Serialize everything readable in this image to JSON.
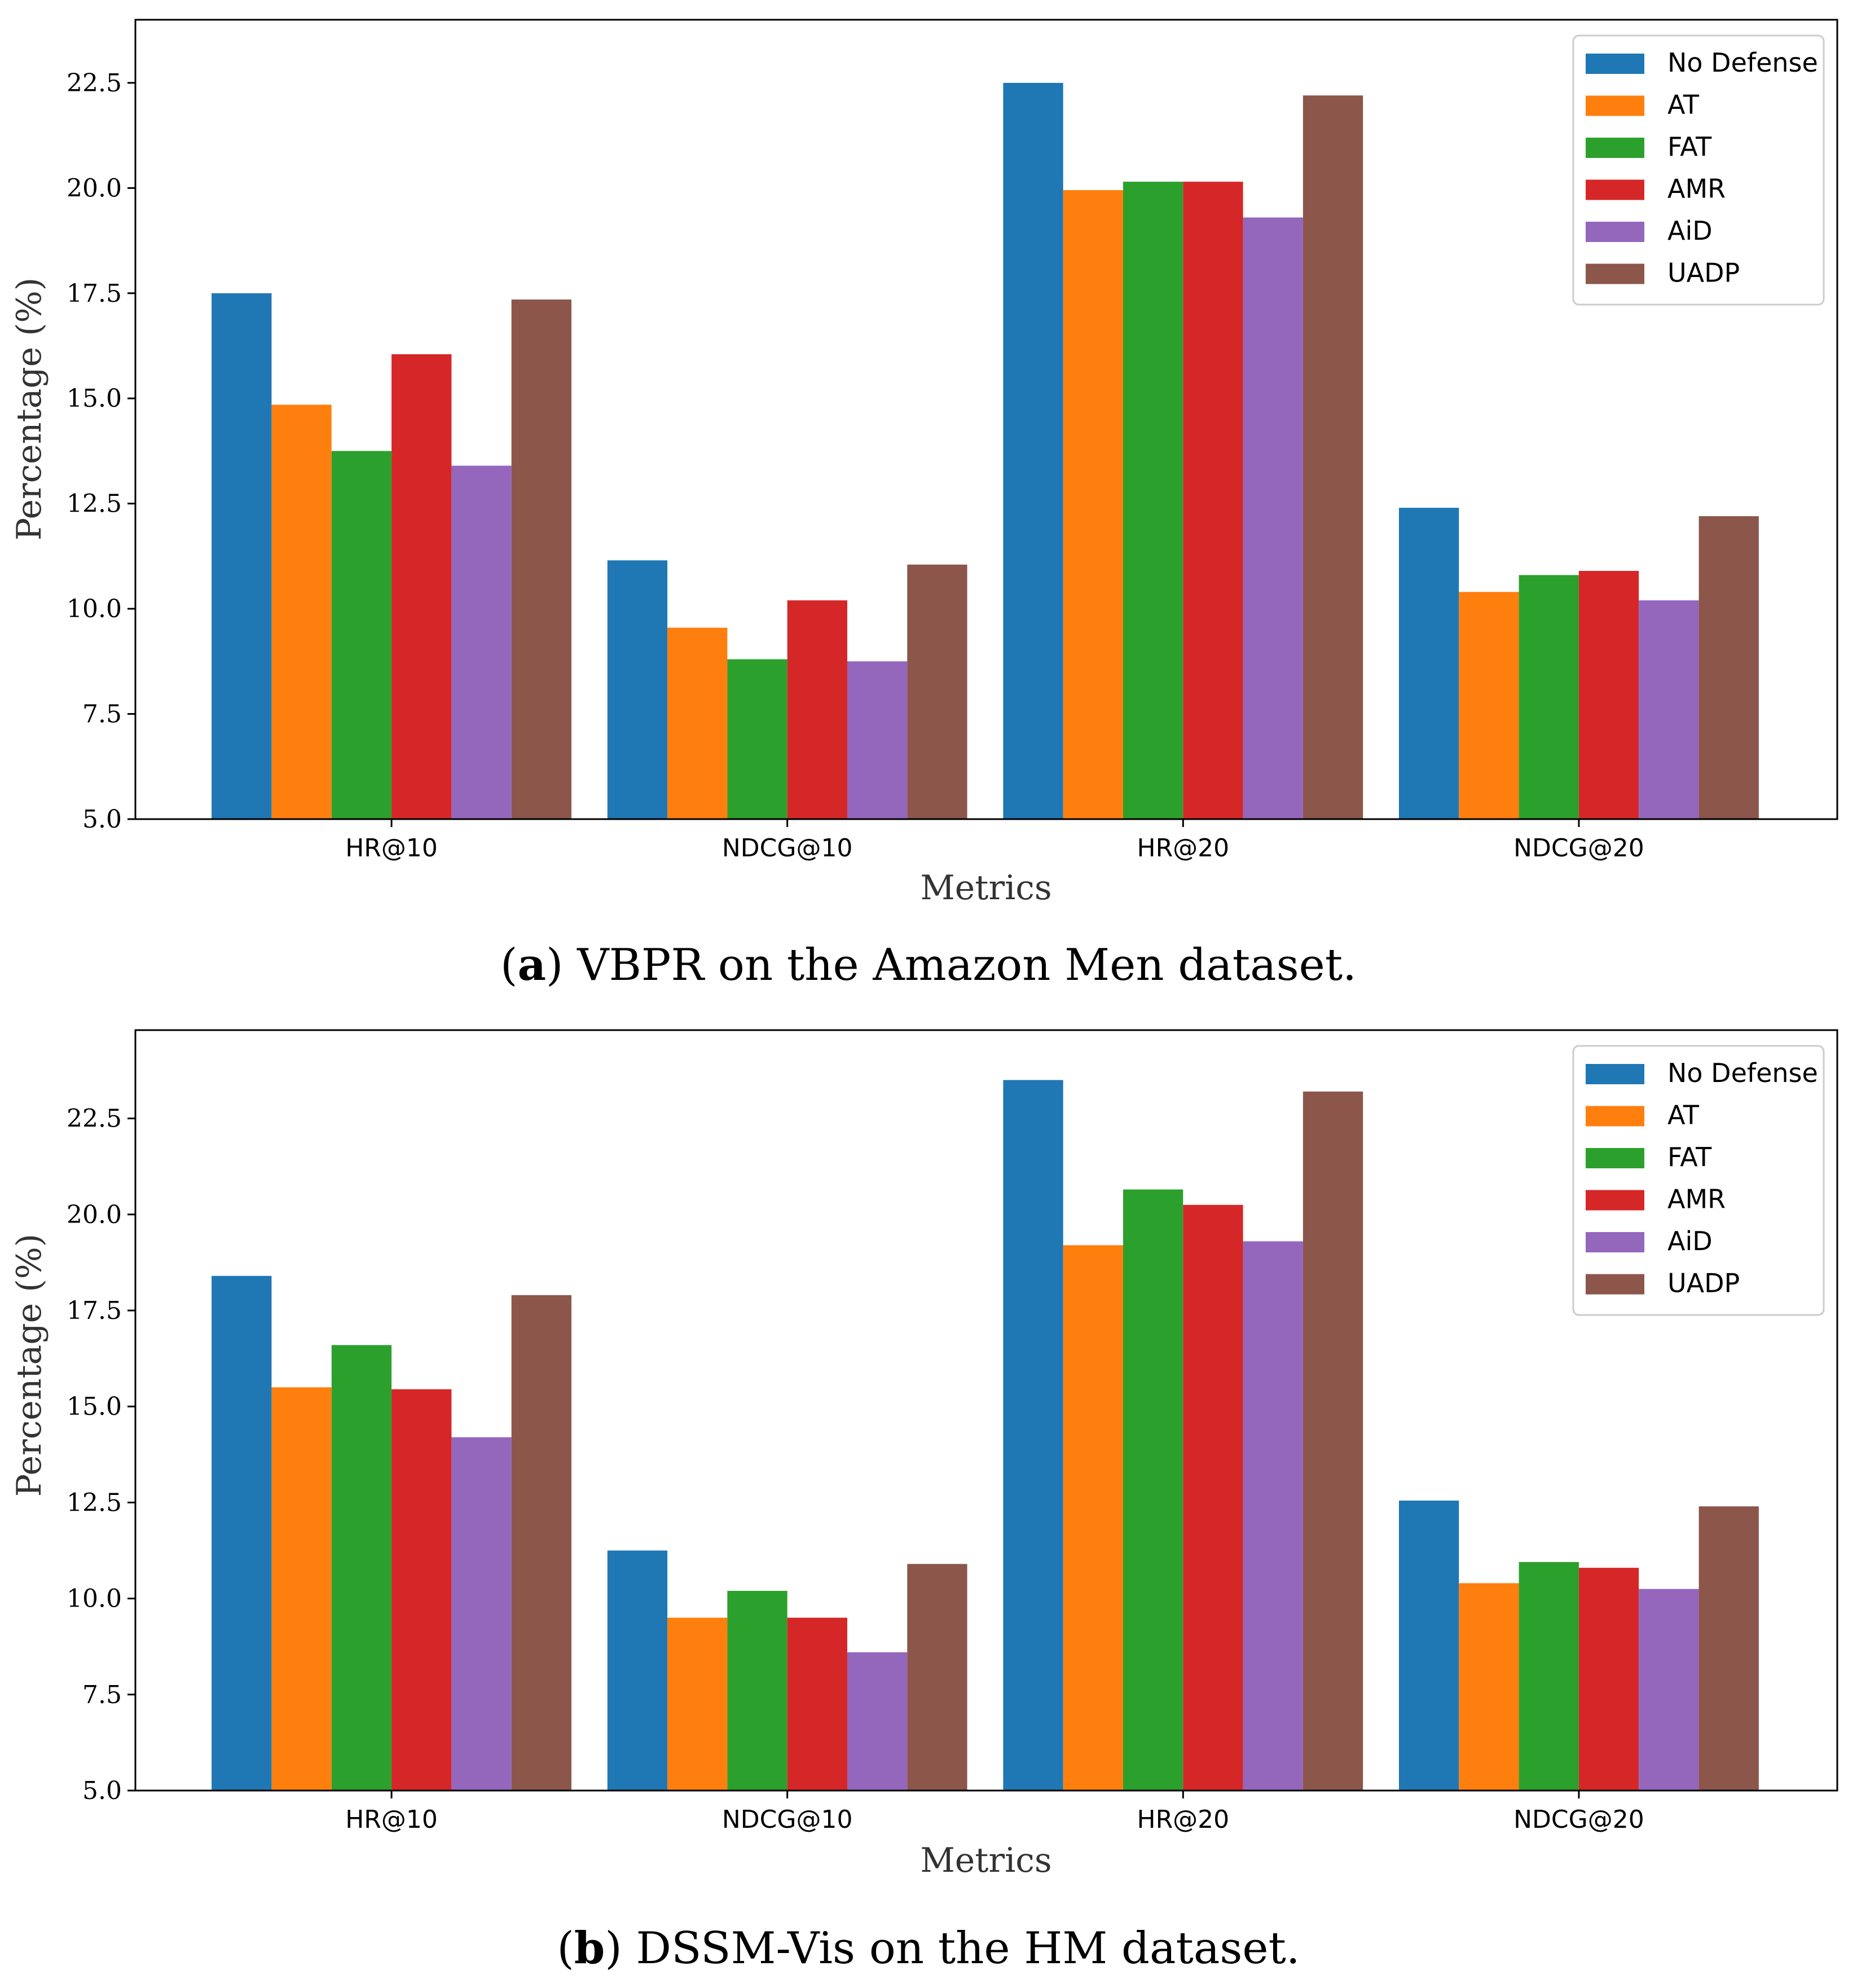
{
  "series_colors": [
    "#1f77b4",
    "#ff7f0e",
    "#2ca02c",
    "#d62728",
    "#9467bd",
    "#8c564b"
  ],
  "panels": [
    {
      "caption_open": "(",
      "caption_letter": "a",
      "caption_text": ") VBPR on the Amazon Men dataset."
    },
    {
      "caption_open": "(",
      "caption_letter": "b",
      "caption_text": ") DSSM-Vis on the HM dataset."
    }
  ],
  "chart_data": [
    {
      "type": "bar",
      "title": "",
      "xlabel": "Metrics",
      "ylabel": "Percentage (%)",
      "ylim": [
        5.0,
        24.0
      ],
      "yticks": [
        "5.0",
        "7.5",
        "10.0",
        "12.5",
        "15.0",
        "17.5",
        "20.0",
        "22.5"
      ],
      "legend_position": "top-right",
      "categories": [
        "HR@10",
        "NDCG@10",
        "HR@20",
        "NDCG@20"
      ],
      "series": [
        {
          "name": "No Defense",
          "values": [
            17.5,
            11.15,
            22.5,
            12.4
          ]
        },
        {
          "name": "AT",
          "values": [
            14.85,
            9.55,
            19.95,
            10.4
          ]
        },
        {
          "name": "FAT",
          "values": [
            13.75,
            8.8,
            20.15,
            10.8
          ]
        },
        {
          "name": "AMR",
          "values": [
            16.05,
            10.2,
            20.15,
            10.9
          ]
        },
        {
          "name": "AiD",
          "values": [
            13.4,
            8.75,
            19.3,
            10.2
          ]
        },
        {
          "name": "UADP",
          "values": [
            17.35,
            11.05,
            22.2,
            12.2
          ]
        }
      ]
    },
    {
      "type": "bar",
      "title": "",
      "xlabel": "Metrics",
      "ylabel": "Percentage (%)",
      "ylim": [
        5.0,
        24.8
      ],
      "yticks": [
        "5.0",
        "7.5",
        "10.0",
        "12.5",
        "15.0",
        "17.5",
        "20.0",
        "22.5"
      ],
      "legend_position": "top-right",
      "categories": [
        "HR@10",
        "NDCG@10",
        "HR@20",
        "NDCG@20"
      ],
      "series": [
        {
          "name": "No Defense",
          "values": [
            18.4,
            11.25,
            23.5,
            12.55
          ]
        },
        {
          "name": "AT",
          "values": [
            15.5,
            9.5,
            19.2,
            10.4
          ]
        },
        {
          "name": "FAT",
          "values": [
            16.6,
            10.2,
            20.65,
            10.95
          ]
        },
        {
          "name": "AMR",
          "values": [
            15.45,
            9.5,
            20.25,
            10.8
          ]
        },
        {
          "name": "AiD",
          "values": [
            14.2,
            8.6,
            19.3,
            10.25
          ]
        },
        {
          "name": "UADP",
          "values": [
            17.9,
            10.9,
            23.2,
            12.4
          ]
        }
      ]
    }
  ]
}
